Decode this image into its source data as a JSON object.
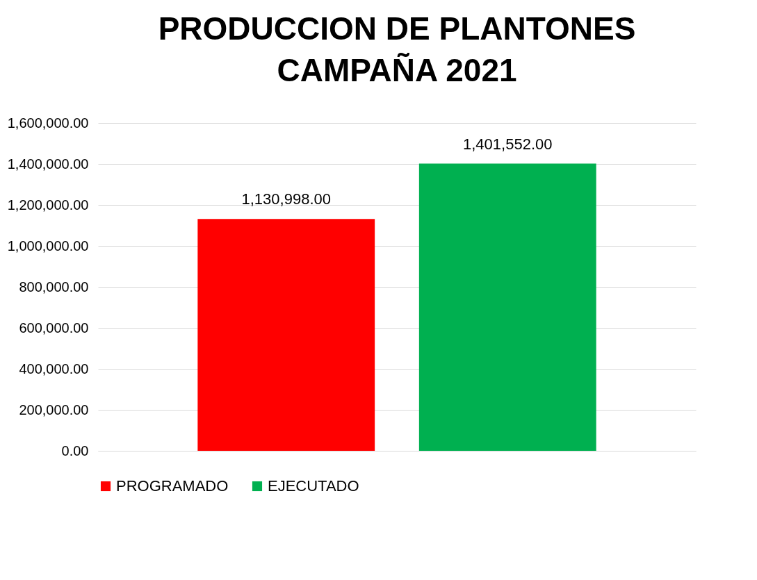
{
  "chart_data": {
    "type": "bar",
    "title": "PRODUCCION DE PLANTONES CAMPAÑA 2021",
    "categories": [
      null
    ],
    "series": [
      {
        "name": "PROGRAMADO",
        "color": "#ff0000",
        "values": [
          1130998
        ],
        "value_labels": [
          "1,130,998.00"
        ]
      },
      {
        "name": "EJECUTADO",
        "color": "#00b050",
        "values": [
          1401552
        ],
        "value_labels": [
          "1,401,552.00"
        ]
      }
    ],
    "ylim": [
      0,
      1600000
    ],
    "yticks": [
      {
        "value": 0,
        "label": "0.00"
      },
      {
        "value": 200000,
        "label": "200,000.00"
      },
      {
        "value": 400000,
        "label": "400,000.00"
      },
      {
        "value": 600000,
        "label": "600,000.00"
      },
      {
        "value": 800000,
        "label": "800,000.00"
      },
      {
        "value": 1000000,
        "label": "1,000,000.00"
      },
      {
        "value": 1200000,
        "label": "1,200,000.00"
      },
      {
        "value": 1400000,
        "label": "1,400,000.00"
      },
      {
        "value": 1600000,
        "label": "1,600,000.00"
      }
    ],
    "grid": "y",
    "legend": "bottom"
  }
}
